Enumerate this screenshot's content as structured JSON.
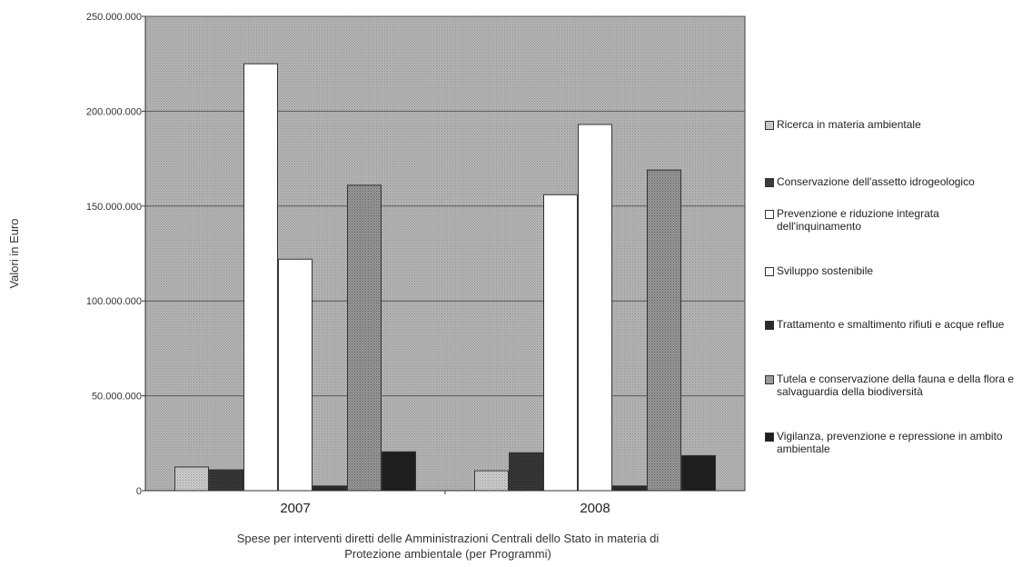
{
  "chart_data": {
    "type": "bar",
    "categories": [
      "2007",
      "2008"
    ],
    "ylabel": "Valori in Euro",
    "xlabel": "Spese per interventi diretti delle Amministrazioni Centrali dello Stato in materia di Protezione ambientale (per Programmi)",
    "ylim": [
      0,
      250000000
    ],
    "yticks": [
      0,
      50000000,
      100000000,
      150000000,
      200000000,
      250000000
    ],
    "ytick_labels": [
      "0",
      "50.000.000",
      "100.000.000",
      "150.000.000",
      "200.000.000",
      "250.000.000"
    ],
    "grid": true,
    "legend_position": "right",
    "series": [
      {
        "name": "Ricerca in materia ambientale",
        "values": [
          12500000,
          10500000
        ],
        "color": "#c4c4c4"
      },
      {
        "name": "Conservazione dell'assetto idrogeologico",
        "values": [
          11000000,
          20000000
        ],
        "color": "#3a3a3a"
      },
      {
        "name": "Prevenzione e riduzione integrata dell'inquinamento",
        "values": [
          225000000,
          156000000
        ],
        "color": "#ffffff"
      },
      {
        "name": "Sviluppo sostenibile",
        "values": [
          122000000,
          193000000
        ],
        "color": "#ffffff"
      },
      {
        "name": "Trattamento e smaltimento rifiuti e acque reflue",
        "values": [
          2500000,
          2500000
        ],
        "color": "#2a2a2a"
      },
      {
        "name": "Tutela e conservazione della fauna e della flora e salvaguardia della biodiversità",
        "values": [
          161000000,
          169000000
        ],
        "color": "#8c8c8c"
      },
      {
        "name": "Vigilanza, prevenzione e repressione in ambito ambientale",
        "values": [
          20500000,
          18500000
        ],
        "color": "#1e1e1e"
      }
    ]
  },
  "colors": {
    "plot_background": "#b8b8b8",
    "gridline": "#555555"
  }
}
